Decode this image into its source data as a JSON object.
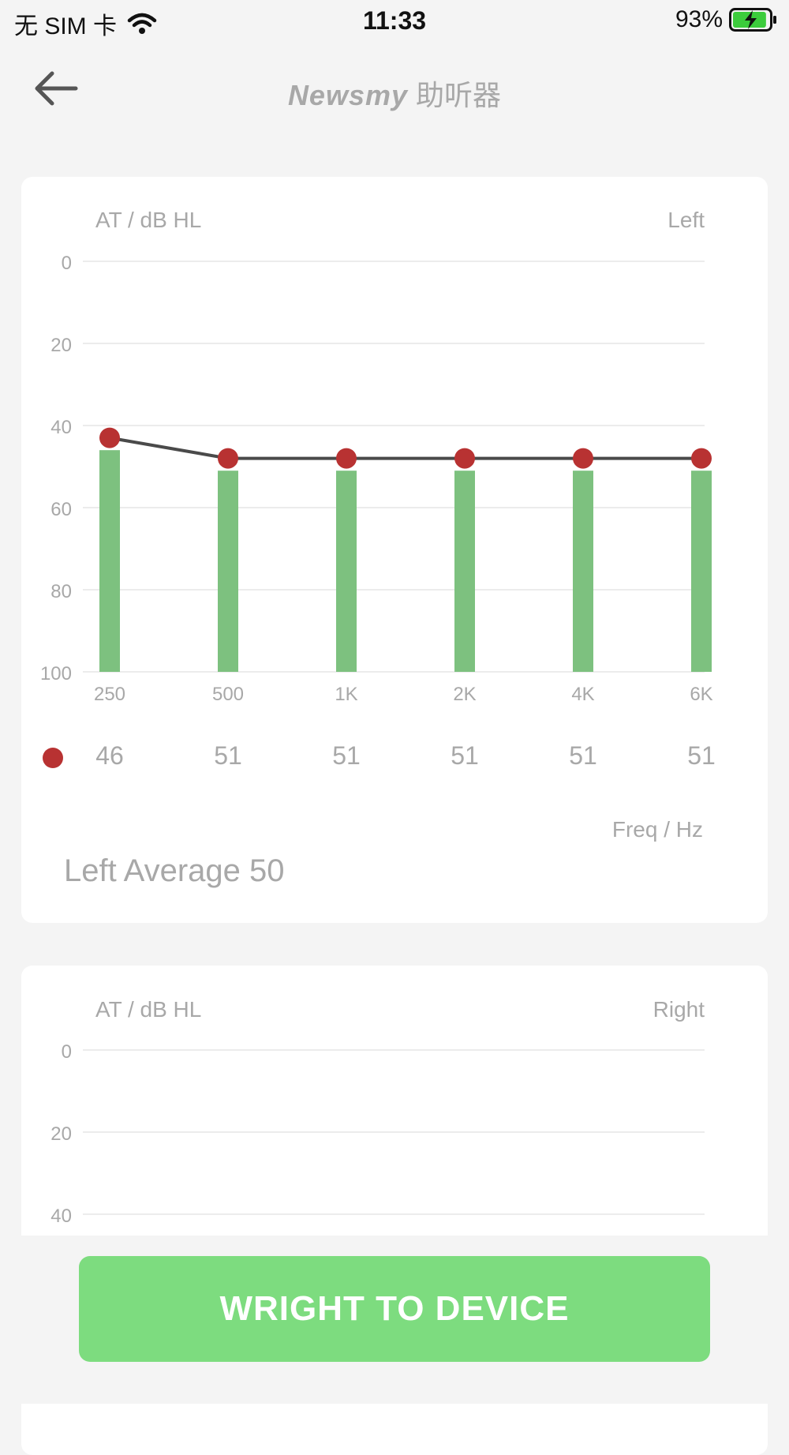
{
  "status_bar": {
    "carrier": "无 SIM 卡",
    "time": "11:33",
    "battery": "93%",
    "battery_level": 0.93
  },
  "nav": {
    "brand": "Newsmy",
    "title": "助听器"
  },
  "left_chart": {
    "y_axis_label": "AT / dB HL",
    "ear_label": "Left",
    "x_axis_label": "Freq / Hz",
    "average_label": "Left Average 50",
    "chart_data": {
      "type": "bar",
      "categories": [
        "250",
        "500",
        "1K",
        "2K",
        "4K",
        "6K"
      ],
      "values": [
        46,
        51,
        51,
        51,
        51,
        51
      ],
      "line_values": [
        43,
        48,
        48,
        48,
        48,
        48
      ],
      "yticks": [
        "0",
        "20",
        "40",
        "60",
        "80",
        "100"
      ],
      "ylim": [
        0,
        100
      ],
      "y_inverted": true,
      "bar_color": "#7dc17f",
      "line_color": "#4a4a4a",
      "point_color": "#b83232"
    },
    "value_labels": [
      "46",
      "51",
      "51",
      "51",
      "51",
      "51"
    ]
  },
  "right_chart": {
    "y_axis_label": "AT / dB HL",
    "ear_label": "Right",
    "chart_data": {
      "type": "bar",
      "yticks": [
        "0",
        "20",
        "40"
      ],
      "ylim": [
        0,
        100
      ],
      "y_inverted": true
    }
  },
  "actions": {
    "write_label": "WRIGHT TO DEVICE"
  },
  "colors": {
    "accent": "#7ddc7f",
    "background": "#f4f4f4"
  }
}
